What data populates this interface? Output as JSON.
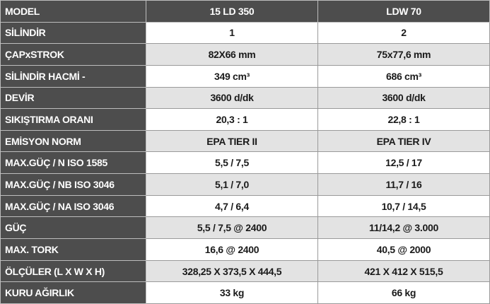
{
  "table": {
    "header": [
      "MODEL",
      "15 LD 350",
      "LDW 70"
    ],
    "rows": [
      [
        "SİLİNDİR",
        "1",
        "2"
      ],
      [
        "ÇAPxSTROK",
        "82X66 mm",
        "75x77,6 mm"
      ],
      [
        "SİLİNDİR HACMİ -",
        "349 cm³",
        "686 cm³"
      ],
      [
        "DEVİR",
        "3600 d/dk",
        "3600 d/dk"
      ],
      [
        "SIKIŞTIRMA ORANI",
        "20,3 : 1",
        "22,8 : 1"
      ],
      [
        "EMİSYON NORM",
        "EPA TIER II",
        "EPA TIER IV"
      ],
      [
        "MAX.GÜÇ / N ISO 1585",
        "5,5 / 7,5",
        "12,5 / 17"
      ],
      [
        "MAX.GÜÇ / NB ISO 3046",
        "5,1 / 7,0",
        "11,7 / 16"
      ],
      [
        "MAX.GÜÇ / NA ISO 3046",
        "4,7 / 6,4",
        "10,7 / 14,5"
      ],
      [
        "GÜÇ",
        "5,5 / 7,5 @ 2400",
        "11/14,2 @ 3.000"
      ],
      [
        "MAX. TORK",
        "16,6 @ 2400",
        "40,5 @ 2000"
      ],
      [
        "ÖLÇÜLER (L X W X H)",
        "328,25 X 373,5 X 444,5",
        "421 X 412 X 515,5"
      ],
      [
        "KURU AĞIRLIK",
        "33 kg",
        "66 kg"
      ]
    ]
  }
}
